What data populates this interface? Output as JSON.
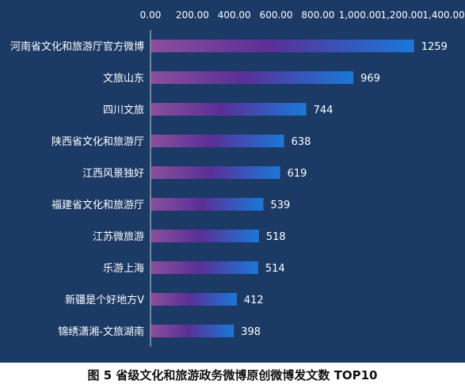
{
  "chart_data": {
    "type": "bar",
    "orientation": "horizontal",
    "categories": [
      "河南省文化和旅游厅官方微博",
      "文旅山东",
      "四川文旅",
      "陕西省文化和旅游厅",
      "江西风景独好",
      "福建省文化和旅游厅",
      "江苏微旅游",
      "乐游上海",
      "新疆是个好地方V",
      "锦绣潇湘-文旅湖南"
    ],
    "values": [
      1259,
      969,
      744,
      638,
      619,
      539,
      518,
      514,
      412,
      398
    ],
    "xlim": [
      0,
      1400
    ],
    "x_ticks": [
      0,
      200,
      400,
      600,
      800,
      1000,
      1200,
      1400
    ],
    "x_tick_labels": [
      "0.00",
      "200.00",
      "400.00",
      "600.00",
      "800.00",
      "1,000.00",
      "1,200.00",
      "1,400.00"
    ],
    "x_axis_position": "top",
    "grid": false,
    "legend": "none",
    "colors": {
      "background": "#1b3a66",
      "bar_start": "#8a4f9c",
      "bar_mid": "#5a2f96",
      "bar_end": "#1a78d8",
      "text": "#ffffff"
    }
  },
  "caption": "图 5  省级文化和旅游政务微博原创微博发文数 TOP10"
}
